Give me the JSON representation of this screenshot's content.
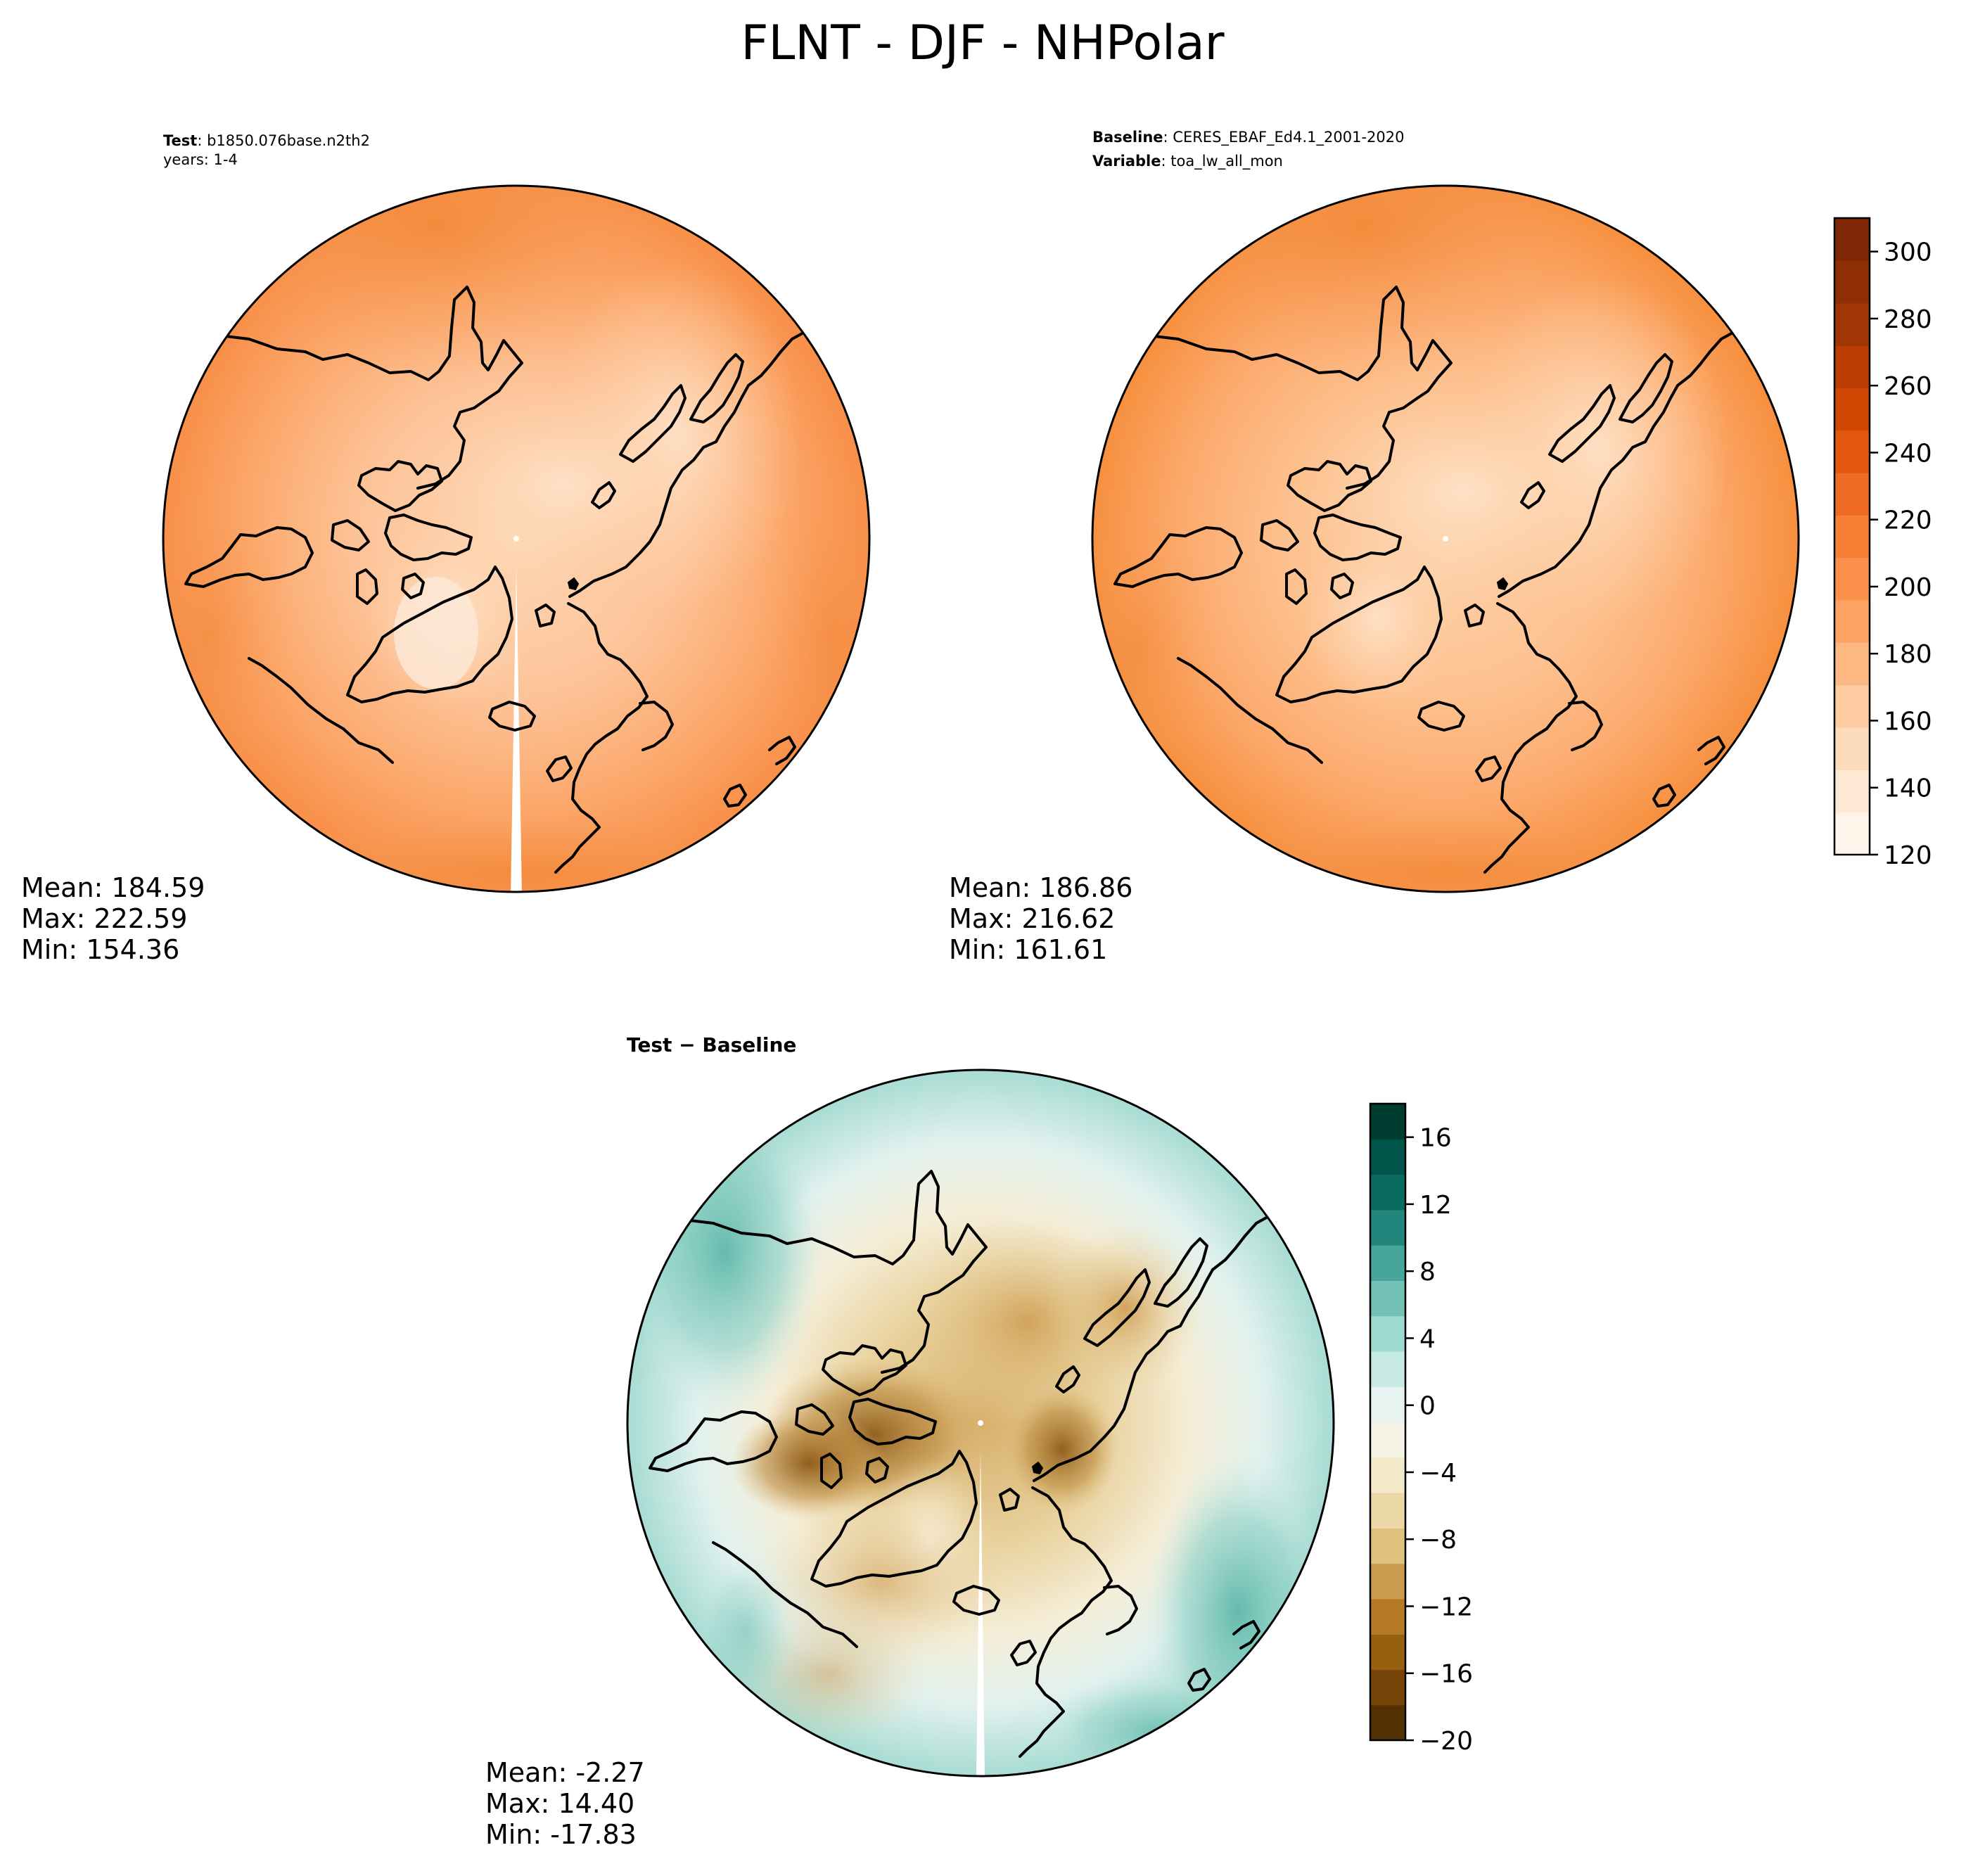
{
  "title": "FLNT - DJF - NHPolar",
  "panels": [
    {
      "id": "test",
      "header_lines": [
        {
          "bold": "Test",
          "sep": ":",
          "text": "b1850.076base.n2th2"
        },
        {
          "bold": "",
          "sep": "",
          "text": "years: 1-4"
        }
      ],
      "stats": {
        "mean": "Mean: 184.59",
        "max": "Max: 222.59",
        "min": "Min: 154.36"
      },
      "colormap": "Oranges",
      "field_range": {
        "min": 154.36,
        "max": 222.59
      }
    },
    {
      "id": "baseline",
      "header_lines": [
        {
          "bold": "Baseline",
          "sep": ":",
          "text": "CERES_EBAF_Ed4.1_2001-2020"
        },
        {
          "bold": "Variable",
          "sep": ":",
          "text": "toa_lw_all_mon"
        }
      ],
      "stats": {
        "mean": "Mean: 186.86",
        "max": "Max: 216.62",
        "min": "Min: 161.61"
      },
      "colormap": "Oranges",
      "field_range": {
        "min": 161.61,
        "max": 216.62
      }
    },
    {
      "id": "diff",
      "header_lines": [
        {
          "bold": "Test − Baseline",
          "sep": "",
          "text": ""
        }
      ],
      "stats": {
        "mean": "Mean: -2.27",
        "max": "Max: 14.40",
        "min": "Min: -17.83"
      },
      "colormap": "BrBG",
      "field_range": {
        "min": -17.83,
        "max": 14.4
      }
    }
  ],
  "colorbars": {
    "main": {
      "range": [
        120,
        310
      ],
      "tick_labels": [
        "120",
        "140",
        "160",
        "180",
        "200",
        "220",
        "240",
        "260",
        "280",
        "300"
      ],
      "tick_values": [
        120,
        140,
        160,
        180,
        200,
        220,
        240,
        260,
        280,
        300
      ],
      "colors": [
        "#fff5eb",
        "#fee9d4",
        "#fddcbc",
        "#fdcba0",
        "#fdb882",
        "#fda465",
        "#fd914b",
        "#f77e35",
        "#ef6a22",
        "#e4570f",
        "#d14805",
        "#ba3e03",
        "#a13503",
        "#8f2d04",
        "#7f2704"
      ]
    },
    "diff": {
      "range": [
        -20,
        18
      ],
      "tick_labels": [
        "−20",
        "−16",
        "−12",
        "−8",
        "−4",
        "0",
        "4",
        "8",
        "12",
        "16"
      ],
      "tick_values": [
        -20,
        -16,
        -12,
        -8,
        -4,
        0,
        4,
        8,
        12,
        16
      ],
      "colors": [
        "#543005",
        "#774509",
        "#97600f",
        "#b57a26",
        "#cb9c4f",
        "#dfc27d",
        "#ecd8a7",
        "#f4e9c8",
        "#f5f2e6",
        "#e6f3f1",
        "#c7eae5",
        "#9fd9cf",
        "#73c2b5",
        "#48a59a",
        "#23867d",
        "#0a6c61",
        "#01554b",
        "#003c30"
      ]
    }
  }
}
